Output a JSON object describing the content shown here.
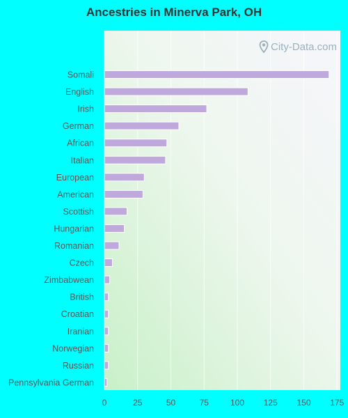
{
  "header": {
    "title": "Ancestries in Minerva Park, OH"
  },
  "watermark": {
    "text": "City-Data.com"
  },
  "colors": {
    "background": "#00ffff",
    "bar": "#bfa8db",
    "text": "#555555"
  },
  "chart_data": {
    "type": "bar",
    "orientation": "horizontal",
    "title": "Ancestries in Minerva Park, OH",
    "xlabel": "",
    "ylabel": "",
    "xlim": [
      0,
      180
    ],
    "xticks": [
      0,
      25,
      50,
      75,
      100,
      125,
      150,
      175
    ],
    "grid": true,
    "legend": "none",
    "categories": [
      "Somali",
      "English",
      "Irish",
      "German",
      "African",
      "Italian",
      "European",
      "American",
      "Scottish",
      "Hungarian",
      "Romanian",
      "Czech",
      "Zimbabwean",
      "British",
      "Croatian",
      "Iranian",
      "Norwegian",
      "Russian",
      "Pennsylvania German"
    ],
    "values": [
      169,
      108,
      77,
      56,
      47,
      46,
      30,
      29,
      17,
      15,
      11,
      6,
      4,
      3,
      3,
      3,
      3,
      3,
      2
    ]
  }
}
